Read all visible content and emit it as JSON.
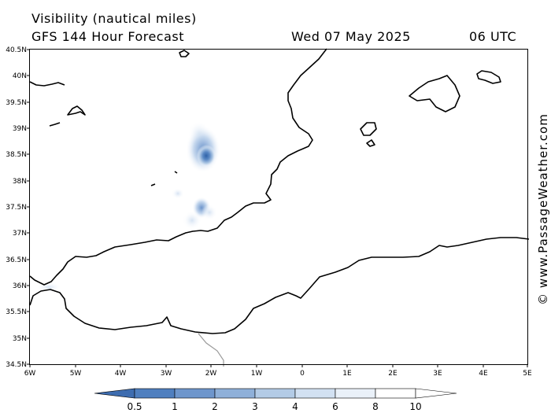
{
  "header": {
    "title": "Visibility (nautical miles)",
    "model": "GFS 144 Hour Forecast",
    "date": "Wed 07 May 2025",
    "time": "06 UTC"
  },
  "axes": {
    "lat_labels": [
      "40.5N",
      "40N",
      "39.5N",
      "39N",
      "38.5N",
      "38N",
      "37.5N",
      "37N",
      "36.5N",
      "36N",
      "35.5N",
      "35N",
      "34.5N"
    ],
    "lon_labels": [
      "6W",
      "5W",
      "4W",
      "3W",
      "2W",
      "1W",
      "0",
      "1E",
      "2E",
      "3E",
      "4E",
      "5E"
    ]
  },
  "colorbar": {
    "labels": [
      "0.5",
      "1",
      "2",
      "3",
      "4",
      "6",
      "8",
      "10"
    ],
    "colors": [
      "#3e6db0",
      "#4f7fbf",
      "#6e96cc",
      "#8fb0d9",
      "#b3cbe6",
      "#d2e1f2",
      "#eaf1f9",
      "#ffffff"
    ]
  },
  "credit": "© www.PassageWeather.com"
}
